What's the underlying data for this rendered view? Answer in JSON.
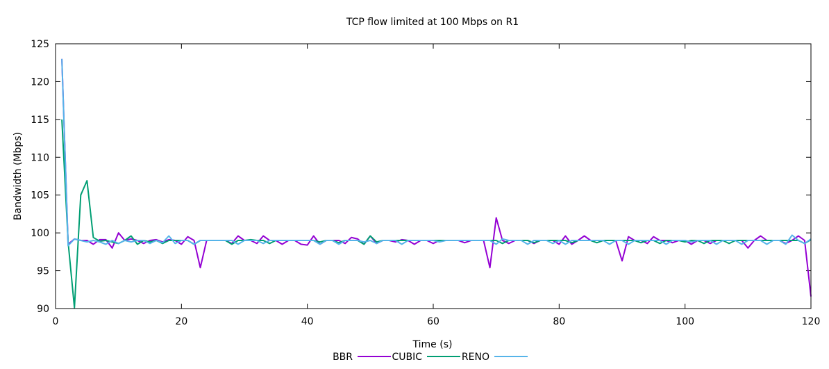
{
  "chart_data": {
    "type": "line",
    "title": "TCP flow limited at 100 Mbps on R1",
    "xlabel": "Time (s)",
    "ylabel": "Bandwidth (Mbps)",
    "xlim": [
      0,
      120
    ],
    "ylim": [
      90,
      125
    ],
    "xticks": [
      0,
      20,
      40,
      60,
      80,
      100,
      120
    ],
    "yticks": [
      90,
      95,
      100,
      105,
      110,
      115,
      120,
      125
    ],
    "grid": false,
    "legend_position": "bottom",
    "x": [
      1,
      2,
      3,
      4,
      5,
      6,
      7,
      8,
      9,
      10,
      11,
      12,
      13,
      14,
      15,
      16,
      17,
      18,
      19,
      20,
      21,
      22,
      23,
      24,
      25,
      26,
      27,
      28,
      29,
      30,
      31,
      32,
      33,
      34,
      35,
      36,
      37,
      38,
      39,
      40,
      41,
      42,
      43,
      44,
      45,
      46,
      47,
      48,
      49,
      50,
      51,
      52,
      53,
      54,
      55,
      56,
      57,
      58,
      59,
      60,
      61,
      62,
      63,
      64,
      65,
      66,
      67,
      68,
      69,
      70,
      71,
      72,
      73,
      74,
      75,
      76,
      77,
      78,
      79,
      80,
      81,
      82,
      83,
      84,
      85,
      86,
      87,
      88,
      89,
      90,
      91,
      92,
      93,
      94,
      95,
      96,
      97,
      98,
      99,
      100,
      101,
      102,
      103,
      104,
      105,
      106,
      107,
      108,
      109,
      110,
      111,
      112,
      113,
      114,
      115,
      116,
      117,
      118,
      119,
      120
    ],
    "series": [
      {
        "name": "BBR",
        "color": "#9400d3",
        "values": [
          123,
          98.5,
          99.2,
          99.0,
          99.0,
          98.5,
          99.1,
          99.1,
          98.0,
          100.0,
          99.0,
          99.2,
          99.0,
          98.6,
          99.0,
          99.1,
          98.8,
          99.1,
          99.0,
          98.5,
          99.5,
          99.0,
          95.4,
          99.0,
          99.0,
          99.0,
          99.0,
          98.6,
          99.6,
          99.0,
          99.0,
          98.6,
          99.6,
          99.0,
          99.0,
          98.5,
          99.0,
          99.0,
          98.5,
          98.4,
          99.6,
          98.5,
          99.0,
          99.0,
          99.0,
          98.6,
          99.4,
          99.2,
          98.5,
          99.6,
          98.6,
          99.0,
          99.0,
          98.8,
          99.1,
          99.0,
          98.5,
          99.0,
          99.0,
          98.6,
          99.0,
          99.0,
          99.0,
          99.0,
          98.7,
          99.0,
          99.0,
          99.0,
          95.4,
          102.0,
          99.0,
          98.6,
          99.0,
          99.0,
          99.0,
          98.6,
          99.0,
          99.0,
          99.0,
          98.5,
          99.6,
          98.5,
          99.0,
          99.6,
          99.0,
          99.0,
          99.0,
          99.0,
          99.0,
          96.3,
          99.5,
          99.0,
          99.0,
          98.6,
          99.5,
          99.0,
          99.0,
          98.7,
          99.0,
          99.0,
          98.5,
          99.0,
          99.0,
          98.6,
          99.0,
          99.0,
          99.0,
          99.0,
          99.0,
          98.0,
          99.0,
          99.6,
          99.0,
          99.0,
          99.0,
          98.6,
          99.0,
          99.6,
          99.0,
          91.6
        ]
      },
      {
        "name": "CUBIC",
        "color": "#009e73",
        "values": [
          115,
          98.8,
          90.1,
          105.0,
          106.9,
          99.4,
          98.9,
          99.0,
          98.8,
          98.6,
          99.0,
          99.6,
          98.5,
          99.0,
          98.8,
          99.0,
          98.6,
          99.0,
          99.0,
          99.0,
          99.0,
          98.5,
          99.0,
          99.0,
          99.0,
          99.0,
          99.0,
          98.5,
          99.0,
          99.0,
          99.1,
          99.0,
          99.0,
          98.6,
          99.0,
          99.0,
          99.0,
          99.0,
          99.0,
          99.0,
          99.0,
          98.8,
          99.0,
          99.0,
          98.7,
          99.0,
          99.0,
          99.0,
          98.5,
          99.6,
          98.8,
          99.0,
          99.0,
          99.0,
          99.0,
          99.0,
          99.0,
          99.0,
          99.0,
          99.0,
          99.0,
          99.0,
          99.0,
          99.0,
          99.0,
          99.0,
          99.0,
          99.0,
          99.0,
          99.0,
          98.6,
          99.0,
          99.0,
          99.0,
          99.0,
          98.7,
          99.0,
          99.0,
          99.0,
          99.0,
          99.0,
          98.7,
          99.0,
          99.0,
          99.0,
          98.7,
          99.0,
          99.0,
          99.0,
          99.0,
          99.0,
          99.0,
          98.7,
          99.0,
          99.0,
          98.6,
          99.0,
          99.0,
          99.0,
          98.8,
          99.0,
          99.0,
          98.6,
          99.0,
          99.0,
          99.0,
          98.6,
          99.0,
          99.0,
          99.0,
          99.0,
          99.0,
          99.0,
          99.0,
          99.0,
          99.0,
          99.0,
          99.0,
          98.6,
          99.1
        ]
      },
      {
        "name": "RENO",
        "color": "#56b4e9",
        "values": [
          123,
          98.3,
          99.2,
          99.0,
          98.8,
          99.0,
          98.8,
          98.5,
          99.0,
          98.6,
          99.0,
          98.8,
          99.0,
          99.0,
          98.6,
          99.0,
          98.7,
          99.6,
          98.6,
          99.0,
          99.0,
          98.5,
          99.0,
          99.0,
          99.0,
          99.0,
          99.0,
          99.0,
          98.5,
          99.0,
          99.0,
          99.0,
          98.6,
          99.0,
          99.0,
          99.0,
          99.0,
          99.0,
          99.0,
          99.0,
          99.0,
          98.5,
          99.0,
          99.0,
          98.5,
          99.0,
          99.0,
          99.0,
          98.8,
          99.0,
          98.6,
          99.0,
          99.0,
          99.0,
          98.5,
          99.0,
          99.0,
          99.0,
          99.0,
          99.0,
          98.8,
          99.0,
          99.0,
          99.0,
          99.0,
          99.0,
          99.0,
          99.0,
          99.0,
          98.5,
          99.2,
          99.0,
          99.0,
          99.0,
          98.5,
          99.0,
          99.0,
          99.0,
          98.6,
          99.0,
          98.5,
          99.0,
          99.0,
          99.0,
          99.0,
          99.0,
          99.0,
          98.5,
          99.0,
          99.0,
          98.5,
          99.0,
          99.0,
          99.0,
          99.0,
          99.0,
          98.5,
          99.0,
          99.0,
          99.0,
          98.8,
          99.0,
          99.0,
          99.0,
          98.5,
          99.0,
          99.0,
          99.0,
          98.5,
          99.0,
          99.0,
          99.0,
          98.5,
          99.0,
          99.0,
          98.5,
          99.7,
          99.0,
          98.6,
          99.2
        ]
      }
    ]
  }
}
